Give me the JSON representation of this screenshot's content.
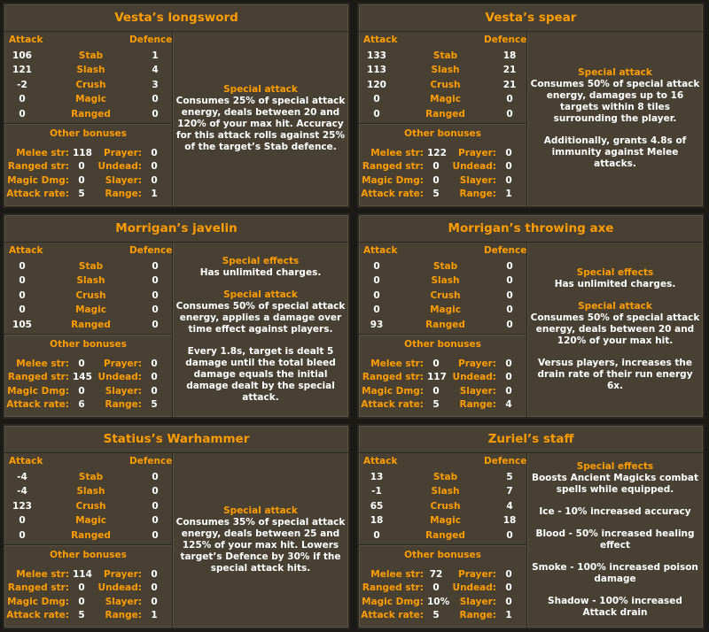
{
  "labels": {
    "attack": "Attack",
    "defence": "Defence",
    "stats": [
      "Stab",
      "Slash",
      "Crush",
      "Magic",
      "Ranged"
    ],
    "other_bonuses": "Other bonuses",
    "melee_str": "Melee str:",
    "ranged_str": "Ranged str:",
    "magic_dmg": "Magic Dmg:",
    "attack_rate": "Attack rate:",
    "prayer": "Prayer:",
    "undead": "Undead:",
    "slayer": "Slayer:",
    "range": "Range:"
  },
  "colors": {
    "text_orange": "#ff9d00",
    "text_white": "#ffffff",
    "panel_bg": "#494034"
  },
  "panels": [
    {
      "title": "Vesta’s longsword",
      "attack": [
        "106",
        "121",
        "-2",
        "0",
        "0"
      ],
      "defence": [
        "1",
        "4",
        "3",
        "0",
        "0"
      ],
      "other": {
        "melee_str": "118",
        "ranged_str": "0",
        "magic_dmg": "0",
        "attack_rate": "5",
        "prayer": "0",
        "undead": "0",
        "slayer": "0",
        "range": "1"
      },
      "desc": [
        {
          "h": "Special attack",
          "t": "Consumes 25% of special attack energy, deals between 20 and 120% of your max hit. Accuracy for this attack rolls against 25% of the target’s Stab defence."
        }
      ]
    },
    {
      "title": "Vesta’s spear",
      "attack": [
        "133",
        "113",
        "120",
        "0",
        "0"
      ],
      "defence": [
        "18",
        "21",
        "21",
        "0",
        "0"
      ],
      "other": {
        "melee_str": "122",
        "ranged_str": "0",
        "magic_dmg": "0",
        "attack_rate": "5",
        "prayer": "0",
        "undead": "0",
        "slayer": "0",
        "range": "1"
      },
      "desc": [
        {
          "h": "Special attack",
          "t": "Consumes 50% of special attack energy, damages up to 16 targets within 8 tiles surrounding the player."
        },
        {
          "h": "",
          "t": "Additionally, grants 4.8s of immunity against Melee attacks."
        }
      ]
    },
    {
      "title": "Morrigan’s javelin",
      "attack": [
        "0",
        "0",
        "0",
        "0",
        "105"
      ],
      "defence": [
        "0",
        "0",
        "0",
        "0",
        "0"
      ],
      "other": {
        "melee_str": "0",
        "ranged_str": "145",
        "magic_dmg": "0",
        "attack_rate": "6",
        "prayer": "0",
        "undead": "0",
        "slayer": "0",
        "range": "5"
      },
      "desc": [
        {
          "h": "Special effects",
          "t": "Has unlimited charges."
        },
        {
          "h": "Special attack",
          "t": "Consumes 50% of special attack energy, applies a damage over time effect against players."
        },
        {
          "h": "",
          "t": "Every 1.8s, target is dealt 5 damage until the total bleed damage equals the initial damage dealt by the special attack."
        }
      ]
    },
    {
      "title": "Morrigan’s throwing axe",
      "attack": [
        "0",
        "0",
        "0",
        "0",
        "93"
      ],
      "defence": [
        "0",
        "0",
        "0",
        "0",
        "0"
      ],
      "other": {
        "melee_str": "0",
        "ranged_str": "117",
        "magic_dmg": "0",
        "attack_rate": "5",
        "prayer": "0",
        "undead": "0",
        "slayer": "0",
        "range": "4"
      },
      "desc": [
        {
          "h": "Special effects",
          "t": "Has unlimited charges."
        },
        {
          "h": "Special attack",
          "t": "Consumes 50% of special attack energy, deals between 20 and 120% of your max hit."
        },
        {
          "h": "",
          "t": "Versus players, increases the drain rate of their run energy 6x."
        }
      ]
    },
    {
      "title": "Statius’s Warhammer",
      "attack": [
        "-4",
        "-4",
        "123",
        "0",
        "0"
      ],
      "defence": [
        "0",
        "0",
        "0",
        "0",
        "0"
      ],
      "other": {
        "melee_str": "114",
        "ranged_str": "0",
        "magic_dmg": "0",
        "attack_rate": "5",
        "prayer": "0",
        "undead": "0",
        "slayer": "0",
        "range": "1"
      },
      "desc": [
        {
          "h": "Special attack",
          "t": "Consumes 35% of special attack energy, deals between 25 and 125% of your max hit. Lowers target’s Defence by 30% if the special attack hits."
        }
      ]
    },
    {
      "title": "Zuriel’s staff",
      "attack": [
        "13",
        "-1",
        "65",
        "18",
        "0"
      ],
      "defence": [
        "5",
        "7",
        "4",
        "18",
        "0"
      ],
      "other": {
        "melee_str": "72",
        "ranged_str": "0",
        "magic_dmg": "10%",
        "attack_rate": "5",
        "prayer": "0",
        "undead": "0",
        "slayer": "0",
        "range": "1"
      },
      "desc": [
        {
          "h": "Special effects",
          "t": "Boosts Ancient Magicks combat spells while equipped."
        },
        {
          "h": "",
          "t": "Ice - 10% increased accuracy"
        },
        {
          "h": "",
          "t": "Blood - 50% increased healing effect"
        },
        {
          "h": "",
          "t": "Smoke - 100% increased poison damage"
        },
        {
          "h": "",
          "t": "Shadow - 100% increased Attack drain"
        }
      ]
    }
  ]
}
